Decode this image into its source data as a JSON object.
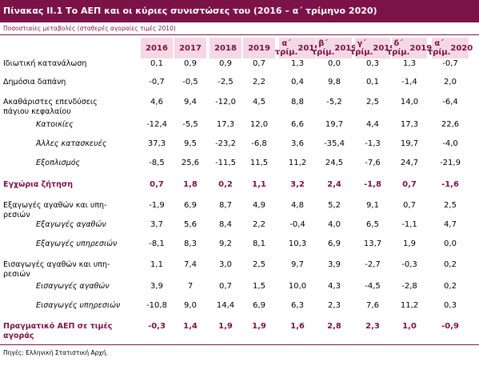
{
  "title": "Πίνακας ΙΙ.1 Το ΑΕΠ και οι κύριες συνιστώσες του (2016 – α΄ τρίμηνο 2020)",
  "subtitle": "Ποσοστιαίες μεταβολές (σταθερές αγοραίες τιμές 2010)",
  "columns": [
    "2016",
    "2017",
    "2018",
    "2019",
    "α΄ τρίμ. 2019",
    "β΄ τρίμ. 2019",
    "γ΄ τρίμ. 2019",
    "δ΄ τρίμ. 2019",
    "α΄ τρίμ. 2020"
  ],
  "rows": [
    {
      "label": "Ιδιωτική κατανάλωση",
      "values": [
        "0,1",
        "0,9",
        "0,9",
        "0,7",
        "1,3",
        "0,0",
        "0,3",
        "1,3",
        "-0,7"
      ]
    },
    {
      "label": "Δημόσια δαπάνη",
      "values": [
        "-0,7",
        "-0,5",
        "-2,5",
        "2,2",
        "0,4",
        "9,8",
        "0,1",
        "-1,4",
        "2,0"
      ]
    },
    {
      "label": "Ακαθάριστες επενδύσεις πάγιου κεφαλαίου",
      "values": [
        "4,6",
        "9,4",
        "-12,0",
        "4,5",
        "8,8",
        "-5,2",
        "2,5",
        "14,0",
        "-6,4"
      ]
    },
    {
      "label": "Κατοικίες",
      "values": [
        "-12,4",
        "-5,5",
        "17,3",
        "12,0",
        "6,6",
        "19,7",
        "4,4",
        "17,3",
        "22,6"
      ]
    },
    {
      "label": "Άλλες κατασκευές",
      "values": [
        "37,3",
        "9,5",
        "-23,2",
        "-6,8",
        "3,6",
        "-35,4",
        "-1,3",
        "19,7",
        "-4,0"
      ]
    },
    {
      "label": "Εξοπλισμός",
      "values": [
        "-8,5",
        "25,6",
        "-11,5",
        "11,5",
        "11,2",
        "24,5",
        "-7,6",
        "24,7",
        "-21,9"
      ]
    },
    {
      "label": "Εγχώρια ζήτηση",
      "values": [
        "0,7",
        "1,8",
        "0,2",
        "1,1",
        "3,2",
        "2,4",
        "-1,8",
        "0,7",
        "-1,6"
      ]
    },
    {
      "label": "Εξαγωγές αγαθών και υπηρεσιών",
      "values": [
        "-1,9",
        "6,9",
        "8,7",
        "4,9",
        "4,8",
        "5,2",
        "9,1",
        "0,7",
        "2,5"
      ]
    },
    {
      "label": "Εξαγωγές αγαθών",
      "values": [
        "3,7",
        "5,6",
        "8,4",
        "2,2",
        "-0,4",
        "4,0",
        "6,5",
        "-1,1",
        "4,7"
      ]
    },
    {
      "label": "Εξαγωγές υπηρεσιών",
      "values": [
        "-8,1",
        "8,3",
        "9,2",
        "8,1",
        "10,3",
        "6,9",
        "13,7",
        "1,9",
        "0,0"
      ]
    },
    {
      "label": "Εισαγωγές αγαθών και υπηρεσιών",
      "values": [
        "1,1",
        "7,4",
        "3,0",
        "2,5",
        "9,7",
        "3,9",
        "-2,7",
        "-0,3",
        "0,2"
      ]
    },
    {
      "label": "Εισαγωγές αγαθών",
      "values": [
        "3,9",
        "7",
        "0,7",
        "1,5",
        "10,0",
        "4,3",
        "-4,5",
        "-2,8",
        "0,2"
      ]
    },
    {
      "label": "Εισαγωγές υπηρεσιών",
      "values": [
        "-10,8",
        "9,0",
        "14,4",
        "6,9",
        "6,3",
        "2,3",
        "7,6",
        "11,2",
        "0,3"
      ]
    },
    {
      "label": "Πραγματικό ΑΕΠ σε τιμές αγοράς",
      "values": [
        "-0,3",
        "1,4",
        "1,9",
        "1,9",
        "1,6",
        "2,8",
        "2,3",
        "1,0",
        "-0,9"
      ]
    }
  ],
  "source": "Πηγές: Ελληνική Στατιστική Αρχή."
}
